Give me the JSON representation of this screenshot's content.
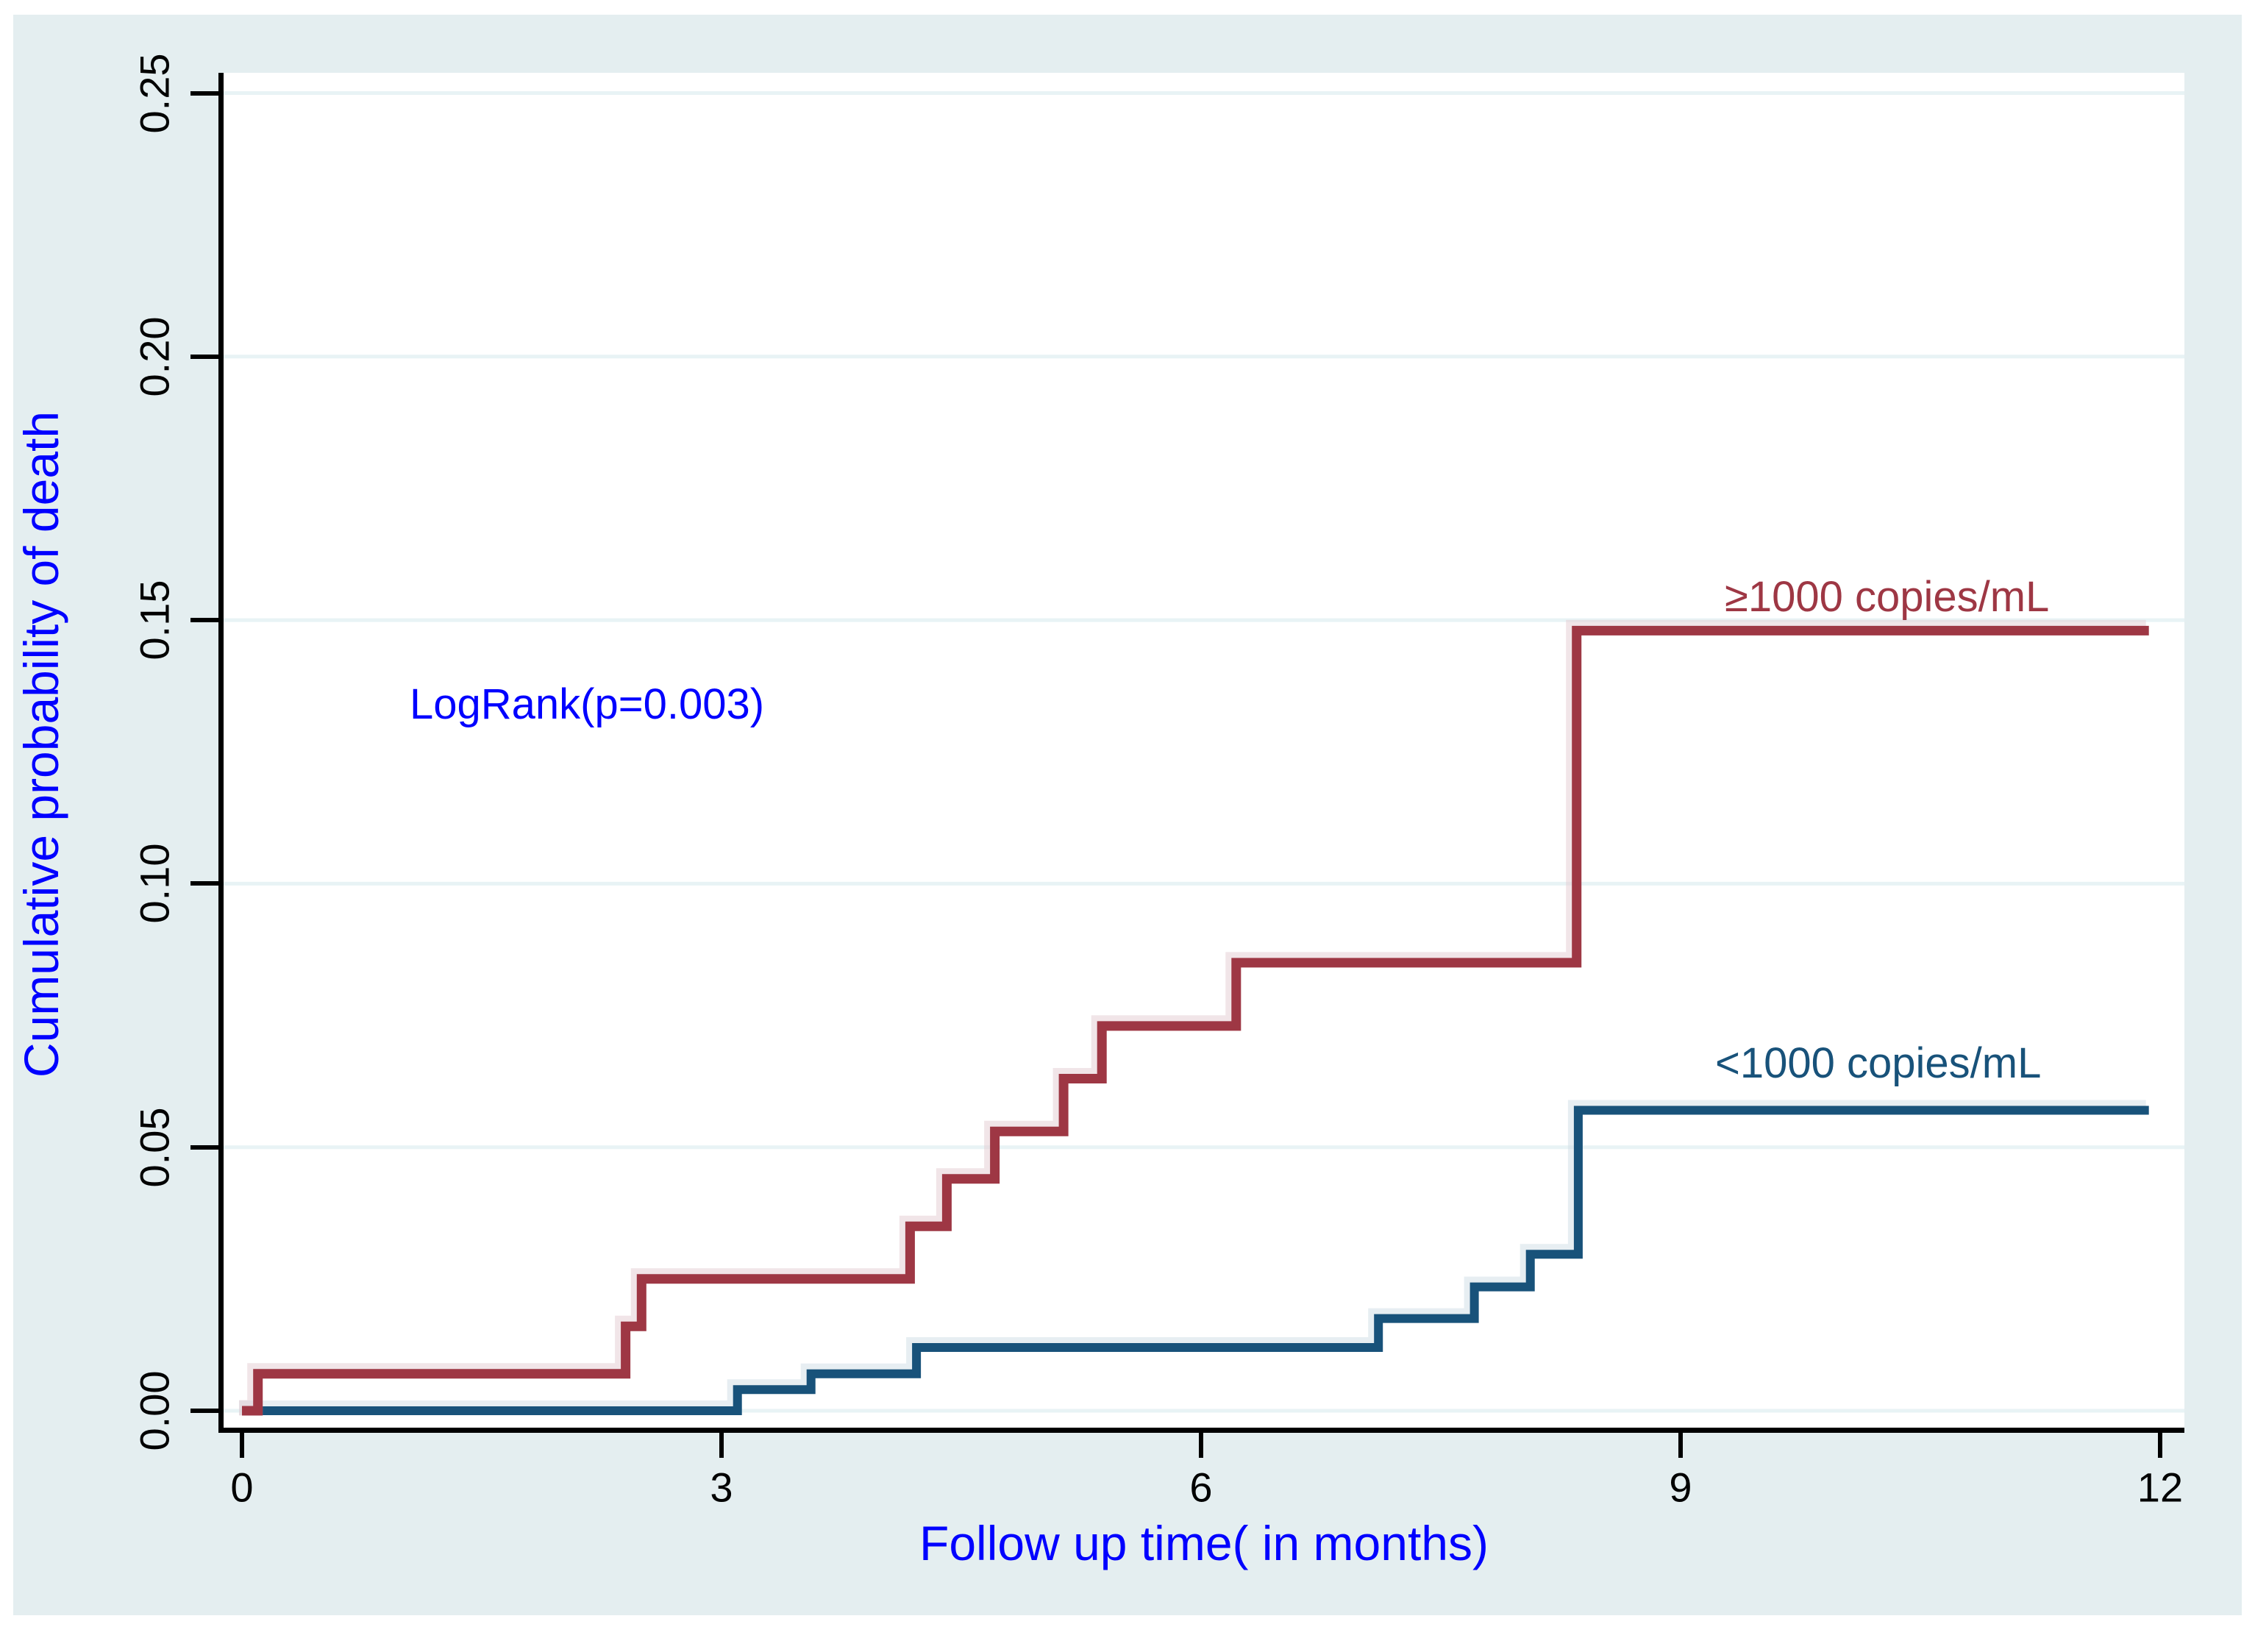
{
  "figure": {
    "canvas_color": "#e4eef0",
    "plot_background": "#ffffff",
    "gridline_color": "#e8f3f5",
    "axis_color": "#000000",
    "axis_title_color": "#0000ff",
    "tick_label_color": "#000000"
  },
  "annotation": {
    "text": "LogRank(p=0.003)",
    "color": "#0000ff"
  },
  "chart_data": {
    "type": "line",
    "subtype": "kaplan-meier-cumulative-incidence-step",
    "title": "",
    "xlabel": "Follow up time( in months)",
    "ylabel": "Cumulative probability of death",
    "xlim": [
      0,
      12
    ],
    "ylim": [
      0,
      0.25
    ],
    "grid": true,
    "legend_position": "inline-curve-labels",
    "x_ticks": [
      {
        "label": "0",
        "value": 0
      },
      {
        "label": "3",
        "value": 3
      },
      {
        "label": "6",
        "value": 6
      },
      {
        "label": "9",
        "value": 9
      },
      {
        "label": "12",
        "value": 12
      }
    ],
    "y_ticks": [
      {
        "label": "0.00",
        "value": 0
      },
      {
        "label": "0.05",
        "value": 0.05
      },
      {
        "label": "0.10",
        "value": 0.1
      },
      {
        "label": "0.15",
        "value": 0.15
      },
      {
        "label": "0.20",
        "value": 0.2
      },
      {
        "label": "0.25",
        "value": 0.25
      }
    ],
    "series": [
      {
        "name": "≥1000 copies/mL",
        "color": "#9e3744",
        "halo_color": "#e3ccd1",
        "stroke_width": 13,
        "points": [
          [
            0,
            0
          ],
          [
            0.1,
            0.007
          ],
          [
            2.4,
            0.016
          ],
          [
            2.5,
            0.025
          ],
          [
            4.18,
            0.035
          ],
          [
            4.41,
            0.044
          ],
          [
            4.71,
            0.053
          ],
          [
            5.14,
            0.063
          ],
          [
            5.38,
            0.073
          ],
          [
            6.22,
            0.085
          ],
          [
            8.35,
            0.148
          ]
        ],
        "end_x": 11.93,
        "final_value": 0.148
      },
      {
        "name": "<1000 copies/mL",
        "color": "#18527a",
        "halo_color": "#cfdde6",
        "stroke_width": 12,
        "points": [
          [
            0,
            0
          ],
          [
            3.1,
            0.004
          ],
          [
            3.56,
            0.007
          ],
          [
            4.22,
            0.012
          ],
          [
            7.11,
            0.0175
          ],
          [
            7.71,
            0.0235
          ],
          [
            8.06,
            0.0297
          ],
          [
            8.36,
            0.057
          ]
        ],
        "end_x": 11.93,
        "final_value": 0.057
      }
    ]
  }
}
